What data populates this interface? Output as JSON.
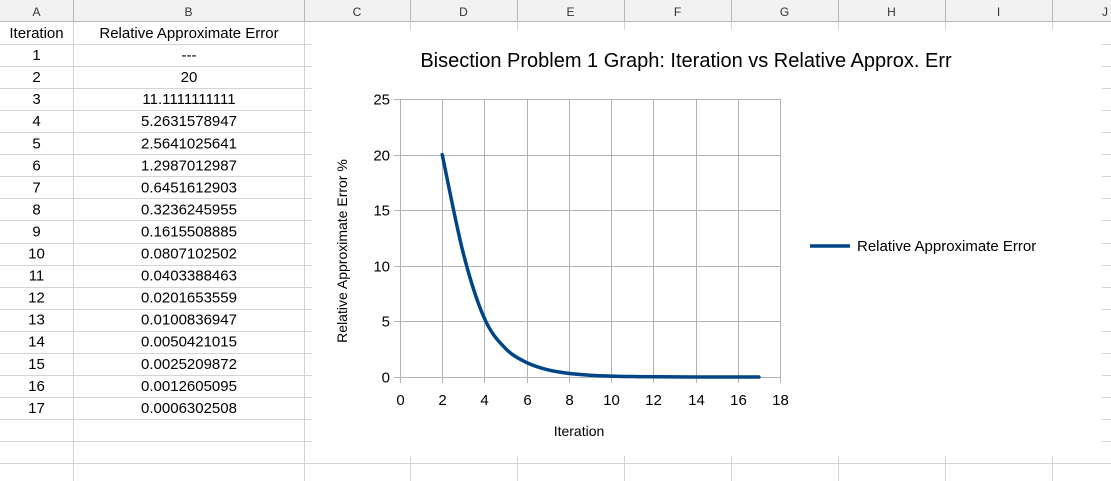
{
  "spreadsheet": {
    "column_headers": [
      "A",
      "B",
      "C",
      "D",
      "E",
      "F",
      "G",
      "H",
      "I",
      "J"
    ],
    "header_row": {
      "iteration": "Iteration",
      "error": "Relative Approximate Error"
    },
    "rows": [
      {
        "iteration": "1",
        "error": "---"
      },
      {
        "iteration": "2",
        "error": "20"
      },
      {
        "iteration": "3",
        "error": "11.1111111111"
      },
      {
        "iteration": "4",
        "error": "5.2631578947"
      },
      {
        "iteration": "5",
        "error": "2.5641025641"
      },
      {
        "iteration": "6",
        "error": "1.2987012987"
      },
      {
        "iteration": "7",
        "error": "0.6451612903"
      },
      {
        "iteration": "8",
        "error": "0.3236245955"
      },
      {
        "iteration": "9",
        "error": "0.1615508885"
      },
      {
        "iteration": "10",
        "error": "0.0807102502"
      },
      {
        "iteration": "11",
        "error": "0.0403388463"
      },
      {
        "iteration": "12",
        "error": "0.0201653559"
      },
      {
        "iteration": "13",
        "error": "0.0100836947"
      },
      {
        "iteration": "14",
        "error": "0.0050421015"
      },
      {
        "iteration": "15",
        "error": "0.0025209872"
      },
      {
        "iteration": "16",
        "error": "0.0012605095"
      },
      {
        "iteration": "17",
        "error": "0.0006302508"
      }
    ]
  },
  "chart_data": {
    "type": "line",
    "title": "Bisection Problem 1 Graph: Iteration vs Relative Approx. Err",
    "xlabel": "Iteration",
    "ylabel": "Relative Approximate Error %",
    "xlim": [
      0,
      18
    ],
    "ylim": [
      0,
      25
    ],
    "xticks": [
      "0",
      "2",
      "4",
      "6",
      "8",
      "10",
      "12",
      "14",
      "16",
      "18"
    ],
    "yticks": [
      "0",
      "5",
      "10",
      "15",
      "20",
      "25"
    ],
    "grid": true,
    "smooth": true,
    "legend": "right",
    "series": [
      {
        "name": "Relative Approximate Error",
        "color": "#004586",
        "x": [
          2,
          3,
          4,
          5,
          6,
          7,
          8,
          9,
          10,
          11,
          12,
          13,
          14,
          15,
          16,
          17
        ],
        "y": [
          20,
          11.1111111111,
          5.2631578947,
          2.5641025641,
          1.2987012987,
          0.6451612903,
          0.3236245955,
          0.1615508885,
          0.0807102502,
          0.0403388463,
          0.0201653559,
          0.0100836947,
          0.0050421015,
          0.0025209872,
          0.0012605095,
          0.0006302508
        ]
      }
    ]
  }
}
